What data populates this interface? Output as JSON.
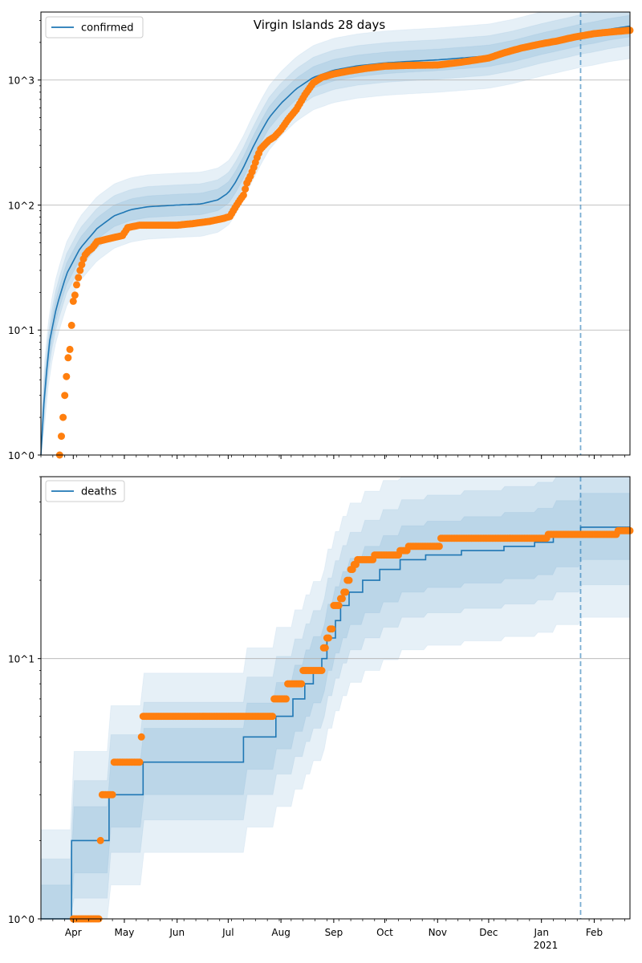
{
  "figure_title": "Virgin Islands 28 days",
  "x_axis": {
    "month_labels": [
      "Apr",
      "May",
      "Jun",
      "Jul",
      "Aug",
      "Sep",
      "Oct",
      "Nov",
      "Dec",
      "Jan",
      "Feb"
    ],
    "month_starts": [
      "2020-04-01",
      "2020-05-01",
      "2020-06-01",
      "2020-07-01",
      "2020-08-01",
      "2020-09-01",
      "2020-10-01",
      "2020-11-01",
      "2020-12-01",
      "2021-01-01",
      "2021-02-01"
    ],
    "year_label": "2021",
    "range": [
      "2020-03-13",
      "2021-02-22"
    ]
  },
  "forecast_start": "2021-01-24",
  "colors": {
    "model_line": "#1f77b4",
    "observed_dots": "#ff7f0e",
    "band": "#1f77b4",
    "grid": "#b0b0b0"
  },
  "chart_data": [
    {
      "type": "line",
      "panel": "confirmed",
      "title": "Virgin Islands 28 days",
      "yscale": "log",
      "ylim": [
        1,
        3500
      ],
      "ytick_labels": [
        "10^0",
        "10^1",
        "10^2",
        "10^3"
      ],
      "grid": "horizontal",
      "legend": {
        "placement": "top-left",
        "entries": [
          "confirmed"
        ]
      },
      "series": [
        {
          "name": "confirmed",
          "kind": "model-median",
          "points": [
            [
              "2020-03-13",
              1
            ],
            [
              "2020-03-15",
              3
            ],
            [
              "2020-03-18",
              8
            ],
            [
              "2020-03-22",
              15
            ],
            [
              "2020-03-28",
              28
            ],
            [
              "2020-04-05",
              45
            ],
            [
              "2020-04-15",
              65
            ],
            [
              "2020-04-25",
              82
            ],
            [
              "2020-05-05",
              92
            ],
            [
              "2020-05-15",
              97
            ],
            [
              "2020-06-01",
              100
            ],
            [
              "2020-06-15",
              102
            ],
            [
              "2020-06-25",
              110
            ],
            [
              "2020-07-01",
              125
            ],
            [
              "2020-07-05",
              150
            ],
            [
              "2020-07-10",
              200
            ],
            [
              "2020-07-15",
              280
            ],
            [
              "2020-07-20",
              380
            ],
            [
              "2020-07-25",
              500
            ],
            [
              "2020-08-01",
              650
            ],
            [
              "2020-08-10",
              850
            ],
            [
              "2020-08-20",
              1050
            ],
            [
              "2020-09-01",
              1200
            ],
            [
              "2020-09-15",
              1300
            ],
            [
              "2020-10-01",
              1370
            ],
            [
              "2020-10-15",
              1410
            ],
            [
              "2020-11-01",
              1450
            ],
            [
              "2020-11-15",
              1500
            ],
            [
              "2020-12-01",
              1560
            ],
            [
              "2020-12-15",
              1700
            ],
            [
              "2021-01-01",
              1950
            ],
            [
              "2021-01-15",
              2150
            ],
            [
              "2021-01-24",
              2300
            ],
            [
              "2021-02-01",
              2400
            ],
            [
              "2021-02-10",
              2550
            ],
            [
              "2021-02-22",
              2700
            ]
          ]
        },
        {
          "name": "observed",
          "kind": "observed-dots",
          "points": [
            [
              "2020-03-24",
              1
            ],
            [
              "2020-03-26",
              2
            ],
            [
              "2020-03-27",
              3
            ],
            [
              "2020-03-29",
              6
            ],
            [
              "2020-03-30",
              7
            ],
            [
              "2020-04-01",
              17
            ],
            [
              "2020-04-02",
              19
            ],
            [
              "2020-04-03",
              23
            ],
            [
              "2020-04-05",
              30
            ],
            [
              "2020-04-07",
              37
            ],
            [
              "2020-04-08",
              40
            ],
            [
              "2020-04-10",
              43
            ],
            [
              "2020-04-12",
              45
            ],
            [
              "2020-04-15",
              51
            ],
            [
              "2020-04-20",
              53
            ],
            [
              "2020-04-25",
              55
            ],
            [
              "2020-04-30",
              57
            ],
            [
              "2020-05-03",
              66
            ],
            [
              "2020-05-10",
              69
            ],
            [
              "2020-05-20",
              69
            ],
            [
              "2020-06-01",
              69
            ],
            [
              "2020-06-10",
              71
            ],
            [
              "2020-06-20",
              74
            ],
            [
              "2020-06-28",
              78
            ],
            [
              "2020-07-02",
              81
            ],
            [
              "2020-07-04",
              90
            ],
            [
              "2020-07-06",
              100
            ],
            [
              "2020-07-08",
              110
            ],
            [
              "2020-07-10",
              120
            ],
            [
              "2020-07-12",
              150
            ],
            [
              "2020-07-14",
              170
            ],
            [
              "2020-07-16",
              200
            ],
            [
              "2020-07-18",
              240
            ],
            [
              "2020-07-20",
              280
            ],
            [
              "2020-07-22",
              300
            ],
            [
              "2020-07-25",
              330
            ],
            [
              "2020-07-28",
              350
            ],
            [
              "2020-08-01",
              400
            ],
            [
              "2020-08-05",
              480
            ],
            [
              "2020-08-10",
              580
            ],
            [
              "2020-08-15",
              760
            ],
            [
              "2020-08-20",
              950
            ],
            [
              "2020-08-25",
              1050
            ],
            [
              "2020-09-01",
              1120
            ],
            [
              "2020-09-10",
              1180
            ],
            [
              "2020-09-20",
              1240
            ],
            [
              "2020-10-01",
              1290
            ],
            [
              "2020-10-15",
              1310
            ],
            [
              "2020-11-01",
              1320
            ],
            [
              "2020-11-15",
              1390
            ],
            [
              "2020-12-01",
              1500
            ],
            [
              "2020-12-10",
              1650
            ],
            [
              "2020-12-20",
              1800
            ],
            [
              "2021-01-01",
              1950
            ],
            [
              "2021-01-10",
              2050
            ],
            [
              "2021-01-20",
              2200
            ],
            [
              "2021-01-24",
              2250
            ],
            [
              "2021-02-01",
              2350
            ],
            [
              "2021-02-10",
              2420
            ],
            [
              "2021-02-22",
              2500
            ]
          ]
        }
      ],
      "bands": [
        {
          "lo_factor": 0.55,
          "hi_factor": 1.8
        },
        {
          "lo_factor": 0.7,
          "hi_factor": 1.45
        },
        {
          "lo_factor": 0.82,
          "hi_factor": 1.22
        }
      ],
      "forecast_line": "2021-01-24"
    },
    {
      "type": "line",
      "panel": "deaths",
      "yscale": "log",
      "ylim": [
        1,
        50
      ],
      "ytick_labels": [
        "10^0",
        "10^1"
      ],
      "grid": "horizontal",
      "legend": {
        "placement": "top-left",
        "entries": [
          "deaths"
        ]
      },
      "series": [
        {
          "name": "deaths",
          "kind": "model-median-step",
          "points": [
            [
              "2020-03-13",
              1
            ],
            [
              "2020-03-31",
              2
            ],
            [
              "2020-04-22",
              3
            ],
            [
              "2020-05-12",
              4
            ],
            [
              "2020-07-10",
              5
            ],
            [
              "2020-07-29",
              6
            ],
            [
              "2020-08-08",
              7
            ],
            [
              "2020-08-15",
              8
            ],
            [
              "2020-08-20",
              9
            ],
            [
              "2020-08-25",
              10
            ],
            [
              "2020-08-28",
              12
            ],
            [
              "2020-09-02",
              14
            ],
            [
              "2020-09-05",
              16
            ],
            [
              "2020-09-10",
              18
            ],
            [
              "2020-09-18",
              20
            ],
            [
              "2020-09-28",
              22
            ],
            [
              "2020-10-10",
              24
            ],
            [
              "2020-10-25",
              25
            ],
            [
              "2020-11-15",
              26
            ],
            [
              "2020-12-10",
              27
            ],
            [
              "2020-12-28",
              28
            ],
            [
              "2021-01-08",
              30
            ],
            [
              "2021-01-24",
              32
            ],
            [
              "2021-02-22",
              32
            ]
          ]
        },
        {
          "name": "observed",
          "kind": "observed-dots",
          "points": [
            [
              "2020-04-01",
              1
            ],
            [
              "2020-04-03",
              1
            ],
            [
              "2020-04-05",
              1
            ],
            [
              "2020-04-07",
              1
            ],
            [
              "2020-04-09",
              1
            ],
            [
              "2020-04-17",
              2
            ],
            [
              "2020-04-18",
              3
            ],
            [
              "2020-04-20",
              3
            ],
            [
              "2020-04-22",
              3
            ],
            [
              "2020-04-25",
              4
            ],
            [
              "2020-04-28",
              4
            ],
            [
              "2020-05-01",
              4
            ],
            [
              "2020-05-05",
              4
            ],
            [
              "2020-05-09",
              4
            ],
            [
              "2020-05-11",
              5
            ],
            [
              "2020-05-12",
              6
            ],
            [
              "2020-05-20",
              6
            ],
            [
              "2020-06-01",
              6
            ],
            [
              "2020-06-15",
              6
            ],
            [
              "2020-07-01",
              6
            ],
            [
              "2020-07-15",
              6
            ],
            [
              "2020-07-27",
              6
            ],
            [
              "2020-07-28",
              7
            ],
            [
              "2020-08-01",
              7
            ],
            [
              "2020-08-05",
              8
            ],
            [
              "2020-08-10",
              8
            ],
            [
              "2020-08-14",
              9
            ],
            [
              "2020-08-20",
              9
            ],
            [
              "2020-08-24",
              9
            ],
            [
              "2020-08-26",
              11
            ],
            [
              "2020-08-28",
              12
            ],
            [
              "2020-08-30",
              13
            ],
            [
              "2020-09-01",
              16
            ],
            [
              "2020-09-03",
              16
            ],
            [
              "2020-09-05",
              17
            ],
            [
              "2020-09-07",
              18
            ],
            [
              "2020-09-09",
              20
            ],
            [
              "2020-09-11",
              22
            ],
            [
              "2020-09-13",
              23
            ],
            [
              "2020-09-15",
              24
            ],
            [
              "2020-09-20",
              24
            ],
            [
              "2020-09-25",
              25
            ],
            [
              "2020-10-01",
              25
            ],
            [
              "2020-10-10",
              26
            ],
            [
              "2020-10-15",
              27
            ],
            [
              "2020-10-25",
              27
            ],
            [
              "2020-11-01",
              27
            ],
            [
              "2020-11-03",
              29
            ],
            [
              "2020-11-15",
              29
            ],
            [
              "2020-12-01",
              29
            ],
            [
              "2020-12-15",
              29
            ],
            [
              "2021-01-01",
              29
            ],
            [
              "2021-01-05",
              30
            ],
            [
              "2021-01-15",
              30
            ],
            [
              "2021-01-24",
              30
            ],
            [
              "2021-02-01",
              30
            ],
            [
              "2021-02-10",
              30
            ],
            [
              "2021-02-15",
              31
            ],
            [
              "2021-02-22",
              31
            ]
          ]
        }
      ],
      "bands": [
        {
          "lo_factor": 0.45,
          "hi_factor": 2.2
        },
        {
          "lo_factor": 0.6,
          "hi_factor": 1.7
        },
        {
          "lo_factor": 0.75,
          "hi_factor": 1.35
        }
      ],
      "forecast_line": "2021-01-24"
    }
  ]
}
